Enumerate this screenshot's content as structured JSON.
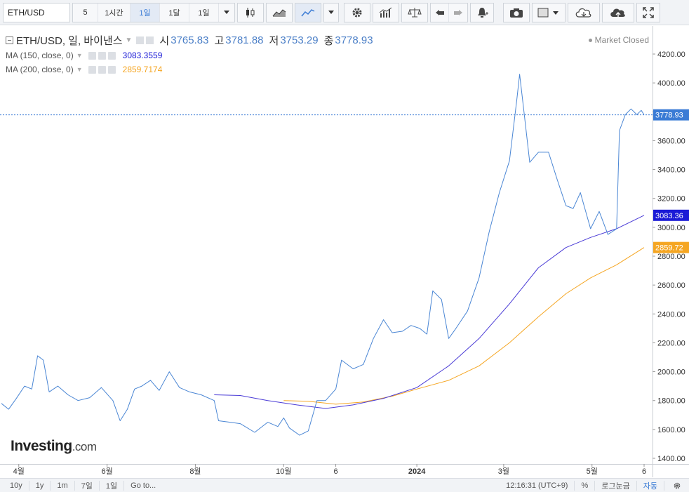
{
  "toolbar": {
    "symbol": "ETH/USD",
    "intervals": [
      "5",
      "1시간",
      "1일",
      "1달",
      "1일"
    ],
    "active_interval_index": 2,
    "icons": [
      "candlestick-icon",
      "area-chart-icon",
      "line-chart-icon",
      "chart-type-caret-icon",
      "settings-gear-icon",
      "bar-indicators-icon",
      "compare-scale-icon",
      "undo-icon",
      "redo-icon",
      "alert-icon",
      "camera-icon",
      "color-box-icon",
      "cloud-download-icon",
      "cloud-upload-icon",
      "fullscreen-icon"
    ]
  },
  "legend": {
    "title": "ETH/USD, 일, 바이낸스",
    "open_label": "시",
    "open": "3765.83",
    "high_label": "고",
    "high": "3781.88",
    "low_label": "저",
    "low": "3753.29",
    "close_label": "종",
    "close": "3778.93",
    "ma150_label": "MA (150, close, 0)",
    "ma150_value": "3083.3559",
    "ma200_label": "MA (200, close, 0)",
    "ma200_value": "2859.7174"
  },
  "status": {
    "market": "Market Closed"
  },
  "logo": {
    "main": "Investing",
    "suffix": ".com"
  },
  "bottombar": {
    "ranges": [
      "10y",
      "1y",
      "1m",
      "7일",
      "1일",
      "Go to..."
    ],
    "time": "12:16:31 (UTC+9)",
    "percent": "%",
    "log": "로그눈금",
    "auto": "자동"
  },
  "colors": {
    "price": "#4a86d4",
    "ma150": "#4a3bd6",
    "ma200": "#f5a623",
    "badge_price": "#3a7bd5",
    "badge_ma150": "#1a1ad6",
    "badge_ma200": "#f5a623"
  },
  "chart_data": {
    "type": "line",
    "title": "ETH/USD, 일, 바이낸스",
    "ylim": [
      1400,
      4300
    ],
    "y_ticks": [
      1400,
      1600,
      1800,
      2000,
      2200,
      2400,
      2600,
      2800,
      3000,
      3200,
      3400,
      3600,
      3800,
      4000,
      4200
    ],
    "y_tick_labels": [
      "1400.00",
      "1600.00",
      "1800.00",
      "2000.00",
      "2200.00",
      "2400.00",
      "2600.00",
      "2800.00",
      "3000.00",
      "3200.00",
      "3400.00",
      "3600.00",
      "3800.00",
      "4000.00",
      "4200.00"
    ],
    "x_tick_labels": [
      "4월",
      "6월",
      "8월",
      "10월",
      "6",
      "2024",
      "3월",
      "5월",
      "6"
    ],
    "x_tick_dates": [
      "2023-04-01",
      "2023-06-01",
      "2023-08-01",
      "2023-10-01",
      "2023-11-06",
      "2024-01-01",
      "2024-03-01",
      "2024-05-01",
      "2024-06-06"
    ],
    "x_range": [
      "2023-03-20",
      "2024-06-06"
    ],
    "price_line": {
      "dates": [
        "2023-03-20",
        "2023-03-25",
        "2023-03-30",
        "2023-04-05",
        "2023-04-10",
        "2023-04-14",
        "2023-04-18",
        "2023-04-22",
        "2023-04-28",
        "2023-05-05",
        "2023-05-12",
        "2023-05-20",
        "2023-05-28",
        "2023-06-05",
        "2023-06-10",
        "2023-06-15",
        "2023-06-20",
        "2023-06-25",
        "2023-07-01",
        "2023-07-07",
        "2023-07-14",
        "2023-07-21",
        "2023-07-28",
        "2023-08-05",
        "2023-08-14",
        "2023-08-17",
        "2023-08-25",
        "2023-09-01",
        "2023-09-11",
        "2023-09-20",
        "2023-09-27",
        "2023-10-01",
        "2023-10-05",
        "2023-10-12",
        "2023-10-18",
        "2023-10-24",
        "2023-10-30",
        "2023-11-06",
        "2023-11-10",
        "2023-11-18",
        "2023-11-25",
        "2023-12-02",
        "2023-12-09",
        "2023-12-15",
        "2023-12-22",
        "2023-12-28",
        "2024-01-03",
        "2024-01-08",
        "2024-01-12",
        "2024-01-18",
        "2024-01-23",
        "2024-01-28",
        "2024-02-05",
        "2024-02-13",
        "2024-02-20",
        "2024-02-27",
        "2024-03-05",
        "2024-03-10",
        "2024-03-12",
        "2024-03-15",
        "2024-03-19",
        "2024-03-25",
        "2024-04-01",
        "2024-04-07",
        "2024-04-13",
        "2024-04-18",
        "2024-04-23",
        "2024-04-30",
        "2024-05-06",
        "2024-05-12",
        "2024-05-18",
        "2024-05-20",
        "2024-05-24",
        "2024-05-28",
        "2024-06-01",
        "2024-06-04",
        "2024-06-06"
      ],
      "values": [
        1780,
        1740,
        1810,
        1900,
        1880,
        2110,
        2080,
        1860,
        1900,
        1840,
        1800,
        1820,
        1890,
        1800,
        1660,
        1740,
        1880,
        1900,
        1940,
        1870,
        2000,
        1890,
        1860,
        1840,
        1800,
        1660,
        1650,
        1640,
        1580,
        1650,
        1620,
        1680,
        1610,
        1560,
        1590,
        1800,
        1800,
        1880,
        2080,
        2020,
        2050,
        2230,
        2360,
        2270,
        2280,
        2320,
        2300,
        2260,
        2560,
        2500,
        2230,
        2300,
        2420,
        2650,
        2970,
        3240,
        3460,
        3880,
        4060,
        3800,
        3450,
        3520,
        3520,
        3330,
        3150,
        3130,
        3240,
        2990,
        3110,
        2950,
        2990,
        3670,
        3780,
        3820,
        3780,
        3810,
        3779
      ]
    },
    "series": [
      {
        "name": "MA (150, close, 0)",
        "dates": [
          "2023-08-14",
          "2023-09-01",
          "2023-09-20",
          "2023-10-10",
          "2023-10-30",
          "2023-11-18",
          "2023-12-09",
          "2024-01-01",
          "2024-01-23",
          "2024-02-13",
          "2024-03-05",
          "2024-03-25",
          "2024-04-13",
          "2024-04-30",
          "2024-05-18",
          "2024-06-06"
        ],
        "values": [
          1840,
          1835,
          1800,
          1770,
          1745,
          1770,
          1815,
          1890,
          2040,
          2230,
          2470,
          2720,
          2860,
          2930,
          2990,
          3083
        ]
      },
      {
        "name": "MA (200, close, 0)",
        "dates": [
          "2023-10-01",
          "2023-10-18",
          "2023-11-06",
          "2023-11-25",
          "2023-12-15",
          "2024-01-01",
          "2024-01-23",
          "2024-02-13",
          "2024-03-05",
          "2024-03-25",
          "2024-04-13",
          "2024-04-30",
          "2024-05-18",
          "2024-06-06"
        ],
        "values": [
          1800,
          1795,
          1775,
          1790,
          1830,
          1880,
          1940,
          2040,
          2200,
          2380,
          2540,
          2650,
          2740,
          2860
        ]
      }
    ],
    "last_price": 3778.93,
    "last_price_label": "3778.93",
    "ma150_last_label": "3083.36",
    "ma200_last_label": "2859.72",
    "grid": false,
    "legend_position": "top-left"
  }
}
